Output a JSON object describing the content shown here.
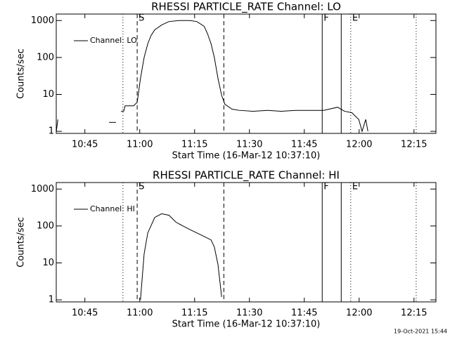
{
  "chart_data": [
    {
      "type": "line",
      "title": "RHESSI PARTICLE_RATE Channel: LO",
      "xlabel": "Start Time (16-Mar-12 10:37:10)",
      "ylabel": "Counts/sec",
      "log_y": true,
      "xlim": [
        637.17,
        741
      ],
      "ylim": [
        0.88,
        1500
      ],
      "xticks": [
        {
          "value": 645,
          "label": "10:45"
        },
        {
          "value": 660,
          "label": "11:00"
        },
        {
          "value": 675,
          "label": "11:15"
        },
        {
          "value": 690,
          "label": "11:30"
        },
        {
          "value": 705,
          "label": "11:45"
        },
        {
          "value": 720,
          "label": "12:00"
        },
        {
          "value": 735,
          "label": "12:15"
        }
      ],
      "yticks": [
        1,
        10,
        100,
        1000
      ],
      "legend": "top-left",
      "markers": [
        {
          "x": 655.4,
          "style": "dotted"
        },
        {
          "x": 659.3,
          "style": "dashed",
          "label": "S"
        },
        {
          "x": 683.0,
          "style": "dashed"
        },
        {
          "x": 709.9,
          "style": "solid",
          "label": "F"
        },
        {
          "x": 715.1,
          "style": "solid"
        },
        {
          "x": 717.7,
          "style": "dotted",
          "label": "E"
        },
        {
          "x": 735.6,
          "style": "dotted"
        }
      ],
      "x": [
        637.2,
        637.6,
        638.0,
        651.6,
        653.5,
        653.8,
        654.9,
        655.6,
        656.0,
        658.3,
        659.3,
        660.2,
        661.2,
        662.2,
        663.1,
        664.1,
        666.0,
        668.0,
        670.8,
        673.7,
        675.6,
        677.6,
        678.5,
        679.5,
        680.4,
        681.4,
        682.4,
        683.3,
        685.2,
        687.2,
        691.0,
        694.9,
        698.7,
        702.6,
        706.4,
        710.3,
        714.1,
        716.0,
        718.0,
        719.9,
        720.8,
        721.8,
        722.4,
        723.0
      ],
      "series": [
        {
          "name": "Channel: LO",
          "color": "#000000",
          "values": [
            1,
            2.1,
            null,
            1.75,
            1.75,
            null,
            3.5,
            3.5,
            4.9,
            4.9,
            6.1,
            27,
            100,
            236,
            395,
            560,
            760,
            940,
            1000,
            1000,
            940,
            700,
            450,
            236,
            100,
            27,
            9.4,
            5.4,
            4.0,
            3.7,
            3.5,
            3.7,
            3.5,
            3.7,
            3.7,
            3.7,
            4.5,
            3.5,
            3.2,
            2.1,
            1,
            2.1,
            1,
            null
          ]
        }
      ]
    },
    {
      "type": "line",
      "title": "RHESSI PARTICLE_RATE Channel: HI",
      "xlabel": "Start Time (16-Mar-12 10:37:10)",
      "ylabel": "Counts/sec",
      "log_y": true,
      "xlim": [
        637.17,
        741
      ],
      "ylim": [
        0.88,
        1500
      ],
      "xticks": [
        {
          "value": 645,
          "label": "10:45"
        },
        {
          "value": 660,
          "label": "11:00"
        },
        {
          "value": 675,
          "label": "11:15"
        },
        {
          "value": 690,
          "label": "11:30"
        },
        {
          "value": 705,
          "label": "11:45"
        },
        {
          "value": 720,
          "label": "12:00"
        },
        {
          "value": 735,
          "label": "12:15"
        }
      ],
      "yticks": [
        1,
        10,
        100,
        1000
      ],
      "legend": "top-left",
      "markers": [
        {
          "x": 655.4,
          "style": "dotted"
        },
        {
          "x": 659.3,
          "style": "dashed",
          "label": "S"
        },
        {
          "x": 683.0,
          "style": "dashed"
        },
        {
          "x": 709.9,
          "style": "solid",
          "label": "F"
        },
        {
          "x": 715.1,
          "style": "solid"
        },
        {
          "x": 717.7,
          "style": "dotted",
          "label": "E"
        },
        {
          "x": 735.6,
          "style": "dotted"
        }
      ],
      "x": [
        660.2,
        661.2,
        662.2,
        664.1,
        666.0,
        668.0,
        669.9,
        671.8,
        673.7,
        675.6,
        677.6,
        679.5,
        680.4,
        681.4,
        682.4
      ],
      "series": [
        {
          "name": "Channel: HI",
          "color": "#000000",
          "values": [
            1,
            17.5,
            65,
            170,
            215,
            195,
            127,
            100,
            80,
            65,
            52,
            42,
            27,
            9,
            1.2
          ]
        }
      ]
    }
  ],
  "footer": "19-Oct-2021 15:44"
}
